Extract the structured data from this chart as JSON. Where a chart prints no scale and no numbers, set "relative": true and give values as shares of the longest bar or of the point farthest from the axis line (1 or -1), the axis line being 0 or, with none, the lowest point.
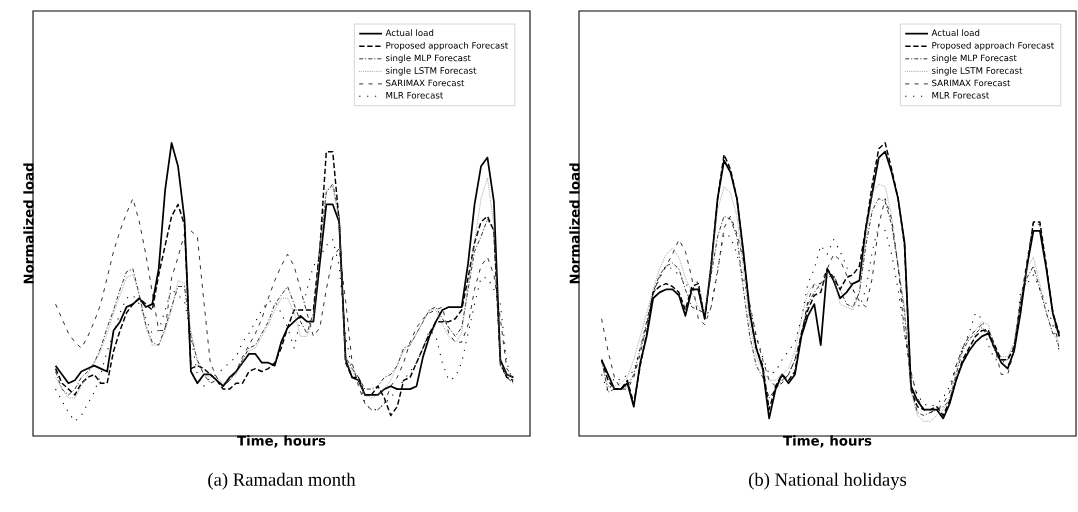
{
  "chart_data": [
    {
      "type": "line",
      "title": "(a) Ramadan month",
      "xlabel": "Time, hours",
      "ylabel": "Normalized load",
      "relative": true,
      "legend": "top right",
      "categories": [
        null,
        null,
        null,
        null,
        null,
        null,
        null,
        null,
        null,
        null,
        null,
        null,
        null,
        null,
        null,
        null,
        null,
        null,
        null,
        null,
        null,
        null,
        null,
        null,
        null,
        null,
        null,
        null,
        null,
        null,
        null,
        null,
        null,
        null,
        null,
        null,
        null,
        null,
        null,
        null,
        null,
        null,
        null,
        null,
        null,
        null,
        null,
        null,
        null,
        null,
        null,
        null,
        null,
        null,
        null,
        null,
        null,
        null,
        null,
        null,
        null,
        null,
        null,
        null,
        null,
        null,
        null,
        null,
        null,
        null,
        null,
        null
      ],
      "series": [
        {
          "name": "Actual load",
          "color": "#000000",
          "line_style": "solid",
          "values": [
            0.24,
            0.21,
            0.18,
            0.19,
            0.22,
            0.23,
            0.24,
            0.23,
            0.22,
            0.36,
            0.39,
            0.44,
            0.45,
            0.47,
            0.44,
            0.45,
            0.57,
            0.84,
            1.0,
            0.92,
            0.74,
            0.22,
            0.18,
            0.21,
            0.21,
            0.19,
            0.17,
            0.2,
            0.22,
            0.25,
            0.28,
            0.28,
            0.25,
            0.25,
            0.24,
            0.32,
            0.37,
            0.39,
            0.41,
            0.39,
            0.39,
            0.59,
            0.79,
            0.79,
            0.73,
            0.26,
            0.2,
            0.19,
            0.14,
            0.14,
            0.14,
            0.16,
            0.17,
            0.16,
            0.16,
            0.16,
            0.17,
            0.27,
            0.34,
            0.39,
            0.43,
            0.44,
            0.44,
            0.44,
            0.59,
            0.79,
            0.92,
            0.95,
            0.8,
            0.26,
            0.21,
            0.2
          ]
        },
        {
          "name": "Proposed approach Forecast",
          "color": "#000000",
          "line_style": "dashed",
          "values": [
            0.23,
            0.18,
            0.16,
            0.14,
            0.18,
            0.2,
            0.21,
            0.18,
            0.18,
            0.29,
            0.36,
            0.42,
            0.45,
            0.47,
            0.45,
            0.43,
            0.55,
            0.65,
            0.75,
            0.79,
            0.72,
            0.23,
            0.24,
            0.23,
            0.21,
            0.19,
            0.16,
            0.16,
            0.18,
            0.18,
            0.22,
            0.23,
            0.22,
            0.23,
            0.25,
            0.3,
            0.37,
            0.43,
            0.43,
            0.43,
            0.43,
            0.64,
            0.97,
            0.97,
            0.73,
            0.25,
            0.2,
            0.2,
            0.14,
            0.14,
            0.17,
            0.13,
            0.07,
            0.1,
            0.19,
            0.2,
            0.25,
            0.3,
            0.35,
            0.39,
            0.39,
            0.39,
            0.4,
            0.43,
            0.54,
            0.66,
            0.73,
            0.75,
            0.7,
            0.25,
            0.2,
            0.19
          ]
        },
        {
          "name": "single MLP Forecast",
          "color": "#000000",
          "line_style": "dashdot",
          "values": [
            0.22,
            0.16,
            0.14,
            0.16,
            0.2,
            0.22,
            0.25,
            0.3,
            0.37,
            0.43,
            0.5,
            0.56,
            0.57,
            0.48,
            0.38,
            0.32,
            0.31,
            0.37,
            0.44,
            0.51,
            0.51,
            0.34,
            0.26,
            0.21,
            0.18,
            0.19,
            0.17,
            0.19,
            0.22,
            0.26,
            0.3,
            0.31,
            0.35,
            0.39,
            0.45,
            0.48,
            0.51,
            0.45,
            0.39,
            0.35,
            0.42,
            0.65,
            0.83,
            0.86,
            0.75,
            0.27,
            0.23,
            0.2,
            0.16,
            0.16,
            0.17,
            0.2,
            0.21,
            0.24,
            0.3,
            0.31,
            0.35,
            0.39,
            0.43,
            0.44,
            0.4,
            0.37,
            0.34,
            0.37,
            0.5,
            0.63,
            0.68,
            0.74,
            0.7,
            0.24,
            0.2,
            0.18
          ]
        },
        {
          "name": "single LSTM Forecast",
          "color": "#7f7f7f",
          "line_style": "dotted",
          "values": [
            0.2,
            0.16,
            0.13,
            0.13,
            0.17,
            0.21,
            0.25,
            0.29,
            0.35,
            0.42,
            0.48,
            0.54,
            0.55,
            0.48,
            0.37,
            0.31,
            0.31,
            0.36,
            0.43,
            0.53,
            0.52,
            0.36,
            0.25,
            0.21,
            0.2,
            0.2,
            0.18,
            0.19,
            0.21,
            0.25,
            0.29,
            0.3,
            0.34,
            0.38,
            0.43,
            0.47,
            0.47,
            0.42,
            0.34,
            0.34,
            0.4,
            0.63,
            0.84,
            0.85,
            0.73,
            0.25,
            0.22,
            0.19,
            0.14,
            0.13,
            0.14,
            0.16,
            0.19,
            0.24,
            0.29,
            0.31,
            0.35,
            0.39,
            0.43,
            0.43,
            0.38,
            0.34,
            0.32,
            0.35,
            0.52,
            0.66,
            0.81,
            0.88,
            0.72,
            0.25,
            0.21,
            0.2
          ]
        },
        {
          "name": "SARIMAX Forecast",
          "color": "#000000",
          "line_style": "loosely dashed",
          "values": [
            0.45,
            0.4,
            0.35,
            0.32,
            0.3,
            0.34,
            0.39,
            0.45,
            0.54,
            0.63,
            0.7,
            0.76,
            0.81,
            0.73,
            0.62,
            0.49,
            0.36,
            0.36,
            0.54,
            0.61,
            0.69,
            0.7,
            0.68,
            0.46,
            0.25,
            0.2,
            0.17,
            0.19,
            0.22,
            0.27,
            0.31,
            0.35,
            0.4,
            0.47,
            0.53,
            0.58,
            0.62,
            0.58,
            0.5,
            0.42,
            0.34,
            0.37,
            0.5,
            0.61,
            0.64,
            0.46,
            0.25,
            0.17,
            0.11,
            0.09,
            0.09,
            0.11,
            0.17,
            0.2,
            0.25,
            0.32,
            0.37,
            0.4,
            0.42,
            0.43,
            0.44,
            0.35,
            0.32,
            0.32,
            0.38,
            0.5,
            0.58,
            0.61,
            0.55,
            0.4,
            0.23,
            0.2
          ]
        },
        {
          "name": "MLR Forecast",
          "color": "#000000",
          "line_style": "loosely dotted",
          "values": [
            0.16,
            0.12,
            0.08,
            0.05,
            0.07,
            0.11,
            0.15,
            0.21,
            0.29,
            0.35,
            0.42,
            0.47,
            0.48,
            0.45,
            0.4,
            0.35,
            0.36,
            0.43,
            0.5,
            0.48,
            0.46,
            0.34,
            0.21,
            0.17,
            0.2,
            0.21,
            0.23,
            0.25,
            0.27,
            0.32,
            0.35,
            0.39,
            0.43,
            0.46,
            0.46,
            0.42,
            0.37,
            0.3,
            0.4,
            0.5,
            0.58,
            0.61,
            0.65,
            0.67,
            0.58,
            0.34,
            0.23,
            0.2,
            0.11,
            0.09,
            0.09,
            0.11,
            0.13,
            0.16,
            0.19,
            0.22,
            0.25,
            0.3,
            0.36,
            0.34,
            0.25,
            0.19,
            0.2,
            0.25,
            0.35,
            0.45,
            0.54,
            0.54,
            0.5,
            0.45,
            0.25,
            0.18
          ]
        }
      ]
    },
    {
      "type": "line",
      "title": "(b) National holidays",
      "xlabel": "Time, hours",
      "ylabel": "Normalized load",
      "relative": true,
      "legend": "top right",
      "categories": [
        null,
        null,
        null,
        null,
        null,
        null,
        null,
        null,
        null,
        null,
        null,
        null,
        null,
        null,
        null,
        null,
        null,
        null,
        null,
        null,
        null,
        null,
        null,
        null,
        null,
        null,
        null,
        null,
        null,
        null,
        null,
        null,
        null,
        null,
        null,
        null,
        null,
        null,
        null,
        null,
        null,
        null,
        null,
        null,
        null,
        null,
        null,
        null,
        null,
        null,
        null,
        null,
        null,
        null,
        null,
        null,
        null,
        null,
        null,
        null,
        null,
        null,
        null,
        null,
        null,
        null,
        null,
        null,
        null,
        null,
        null,
        null
      ],
      "series": [
        {
          "name": "Actual load",
          "color": "#000000",
          "line_style": "solid",
          "values": [
            0.26,
            0.21,
            0.16,
            0.16,
            0.18,
            0.1,
            0.25,
            0.34,
            0.47,
            0.49,
            0.5,
            0.5,
            0.48,
            0.41,
            0.5,
            0.5,
            0.4,
            0.58,
            0.81,
            0.94,
            0.9,
            0.81,
            0.63,
            0.42,
            0.3,
            0.23,
            0.06,
            0.16,
            0.21,
            0.18,
            0.21,
            0.34,
            0.41,
            0.45,
            0.31,
            0.57,
            0.53,
            0.47,
            0.49,
            0.52,
            0.53,
            0.71,
            0.83,
            0.95,
            0.97,
            0.9,
            0.81,
            0.66,
            0.17,
            0.12,
            0.09,
            0.09,
            0.09,
            0.06,
            0.11,
            0.19,
            0.25,
            0.29,
            0.32,
            0.34,
            0.35,
            0.3,
            0.25,
            0.23,
            0.29,
            0.42,
            0.58,
            0.7,
            0.7,
            0.57,
            0.42,
            0.34
          ]
        },
        {
          "name": "Proposed approach Forecast",
          "color": "#000000",
          "line_style": "dashed",
          "values": [
            0.26,
            0.19,
            0.16,
            0.16,
            0.19,
            0.11,
            0.24,
            0.35,
            0.49,
            0.51,
            0.52,
            0.51,
            0.49,
            0.43,
            0.51,
            0.52,
            0.4,
            0.58,
            0.81,
            0.96,
            0.91,
            0.81,
            0.62,
            0.42,
            0.3,
            0.24,
            0.09,
            0.17,
            0.21,
            0.19,
            0.22,
            0.35,
            0.43,
            0.48,
            0.49,
            0.57,
            0.54,
            0.5,
            0.54,
            0.55,
            0.58,
            0.71,
            0.86,
            0.98,
            1.0,
            0.91,
            0.81,
            0.65,
            0.16,
            0.1,
            0.09,
            0.09,
            0.1,
            0.07,
            0.12,
            0.19,
            0.26,
            0.3,
            0.34,
            0.36,
            0.36,
            0.31,
            0.26,
            0.26,
            0.3,
            0.44,
            0.58,
            0.73,
            0.73,
            0.58,
            0.42,
            0.35
          ]
        },
        {
          "name": "single MLP Forecast",
          "color": "#000000",
          "line_style": "dashdot",
          "values": [
            0.26,
            0.15,
            0.16,
            0.16,
            0.17,
            0.21,
            0.3,
            0.39,
            0.49,
            0.55,
            0.58,
            0.59,
            0.57,
            0.5,
            0.44,
            0.43,
            0.42,
            0.55,
            0.68,
            0.75,
            0.74,
            0.68,
            0.5,
            0.34,
            0.24,
            0.2,
            0.13,
            0.16,
            0.19,
            0.21,
            0.26,
            0.35,
            0.45,
            0.49,
            0.52,
            0.54,
            0.55,
            0.5,
            0.45,
            0.44,
            0.49,
            0.65,
            0.77,
            0.81,
            0.8,
            0.72,
            0.58,
            0.42,
            0.16,
            0.08,
            0.07,
            0.08,
            0.09,
            0.1,
            0.12,
            0.21,
            0.29,
            0.33,
            0.35,
            0.37,
            0.35,
            0.29,
            0.26,
            0.26,
            0.31,
            0.46,
            0.54,
            0.58,
            0.5,
            0.42,
            0.35,
            0.34
          ]
        },
        {
          "name": "single LSTM Forecast",
          "color": "#7f7f7f",
          "line_style": "dotted",
          "values": [
            0.25,
            0.17,
            0.17,
            0.18,
            0.2,
            0.26,
            0.34,
            0.42,
            0.5,
            0.57,
            0.62,
            0.64,
            0.61,
            0.54,
            0.49,
            0.44,
            0.42,
            0.57,
            0.77,
            0.85,
            0.83,
            0.75,
            0.57,
            0.38,
            0.27,
            0.22,
            0.19,
            0.19,
            0.21,
            0.23,
            0.29,
            0.4,
            0.49,
            0.52,
            0.5,
            0.56,
            0.54,
            0.45,
            0.44,
            0.43,
            0.49,
            0.67,
            0.83,
            0.86,
            0.85,
            0.75,
            0.58,
            0.44,
            0.15,
            0.07,
            0.05,
            0.05,
            0.07,
            0.09,
            0.13,
            0.22,
            0.3,
            0.34,
            0.36,
            0.39,
            0.38,
            0.3,
            0.27,
            0.27,
            0.32,
            0.47,
            0.57,
            0.61,
            0.52,
            0.42,
            0.35,
            0.32
          ]
        },
        {
          "name": "SARIMAX Forecast",
          "color": "#000000",
          "line_style": "loosely dashed",
          "values": [
            0.4,
            0.29,
            0.2,
            0.16,
            0.16,
            0.2,
            0.28,
            0.38,
            0.49,
            0.54,
            0.58,
            0.62,
            0.67,
            0.63,
            0.54,
            0.4,
            0.38,
            0.44,
            0.56,
            0.71,
            0.75,
            0.69,
            0.6,
            0.45,
            0.34,
            0.26,
            0.19,
            0.17,
            0.18,
            0.21,
            0.26,
            0.34,
            0.46,
            0.52,
            0.52,
            0.57,
            0.62,
            0.6,
            0.55,
            0.5,
            0.46,
            0.44,
            0.54,
            0.72,
            0.81,
            0.74,
            0.58,
            0.35,
            0.22,
            0.13,
            0.09,
            0.08,
            0.09,
            0.11,
            0.15,
            0.24,
            0.3,
            0.34,
            0.36,
            0.38,
            0.35,
            0.3,
            0.21,
            0.21,
            0.29,
            0.46,
            0.6,
            0.73,
            0.72,
            0.58,
            0.43,
            0.29
          ]
        },
        {
          "name": "MLR Forecast",
          "color": "#000000",
          "line_style": "loosely dotted",
          "values": [
            0.21,
            0.15,
            0.2,
            0.19,
            0.21,
            0.22,
            0.3,
            0.36,
            0.48,
            0.54,
            0.58,
            0.57,
            0.55,
            0.52,
            0.5,
            0.53,
            0.4,
            0.44,
            0.57,
            0.69,
            0.68,
            0.62,
            0.54,
            0.44,
            0.34,
            0.27,
            0.21,
            0.22,
            0.26,
            0.29,
            0.32,
            0.4,
            0.52,
            0.57,
            0.65,
            0.62,
            0.67,
            0.63,
            0.58,
            0.5,
            0.44,
            0.5,
            0.63,
            0.72,
            0.7,
            0.62,
            0.5,
            0.35,
            0.21,
            0.14,
            0.11,
            0.1,
            0.11,
            0.13,
            0.17,
            0.24,
            0.3,
            0.35,
            0.42,
            0.4,
            0.31,
            0.26,
            0.26,
            0.24,
            0.29,
            0.49,
            0.52,
            0.55,
            0.5,
            0.45,
            0.38,
            0.29
          ]
        }
      ]
    }
  ]
}
